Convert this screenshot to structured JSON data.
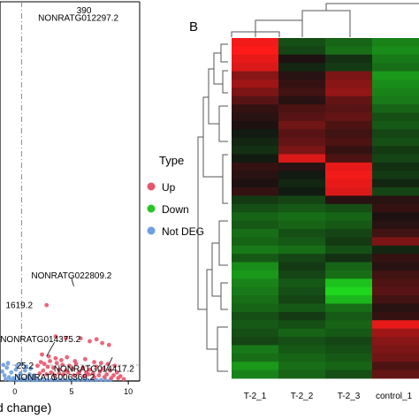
{
  "panel_b_label": "B",
  "legend": {
    "title": "Type",
    "items": [
      {
        "label": "Up",
        "color": "#e8556a"
      },
      {
        "label": "Down",
        "color": "#27c427"
      },
      {
        "label": "Not DEG",
        "color": "#6e9fe0"
      }
    ]
  },
  "chart_data": [
    {
      "type": "scatter",
      "panel": "A",
      "xlabel": "d change)",
      "ylabel": "",
      "xticks": [
        0,
        5,
        10
      ],
      "xlim": [
        -1.3,
        11
      ],
      "ylim": [
        0,
        400
      ],
      "grid": false,
      "reference_line_x": 0.6,
      "reference_line_style": "dash-dot",
      "annotations": [
        {
          "text": "NONRATG012297.2",
          "x": 5.6,
          "y": 380
        },
        {
          "text": "390",
          "x": 6.1,
          "y": 388,
          "color": "#e8556a"
        },
        {
          "text": "NONRATG022809.2",
          "x": 5.0,
          "y": 108
        },
        {
          "text": "1619.2",
          "x": 0.4,
          "y": 77
        },
        {
          "text": "NONRATG014375.2",
          "x": 2.0,
          "y": 41
        },
        {
          "text": "NONRATG014417.2",
          "x": 8.0,
          "y": 10
        },
        {
          "text": "NONRATG006369.2",
          "x": 3.5,
          "y": 1
        },
        {
          "text": "25.2",
          "x": 0.9,
          "y": 13
        }
      ],
      "series": [
        {
          "type": "Up",
          "color": "#e8556a",
          "points": [
            [
              2.8,
              80
            ],
            [
              3.6,
              47
            ],
            [
              4.5,
              45
            ],
            [
              5.8,
              45
            ],
            [
              6.6,
              42
            ],
            [
              7.2,
              44
            ],
            [
              7.7,
              40
            ],
            [
              8.3,
              38
            ],
            [
              2.0,
              16
            ],
            [
              2.3,
              20
            ],
            [
              2.6,
              18
            ],
            [
              2.9,
              15
            ],
            [
              3.1,
              21
            ],
            [
              3.4,
              14
            ],
            [
              3.7,
              19
            ],
            [
              3.9,
              12
            ],
            [
              4.2,
              17
            ],
            [
              4.5,
              11
            ],
            [
              4.8,
              16
            ],
            [
              5.1,
              13
            ],
            [
              5.4,
              18
            ],
            [
              5.7,
              10
            ],
            [
              6.0,
              14
            ],
            [
              6.3,
              9
            ],
            [
              6.6,
              12
            ],
            [
              6.9,
              8
            ],
            [
              7.2,
              15
            ],
            [
              7.5,
              10
            ],
            [
              7.8,
              13
            ],
            [
              8.1,
              7
            ],
            [
              8.4,
              11
            ],
            [
              8.7,
              6
            ],
            [
              9.0,
              9
            ],
            [
              9.3,
              5
            ],
            [
              2.2,
              8
            ],
            [
              2.5,
              11
            ],
            [
              2.8,
              7
            ],
            [
              3.2,
              9
            ],
            [
              3.5,
              6
            ],
            [
              3.9,
              8
            ],
            [
              4.3,
              7
            ],
            [
              4.7,
              9
            ],
            [
              5.2,
              6
            ],
            [
              5.6,
              8
            ],
            [
              6.1,
              5
            ],
            [
              6.5,
              7
            ],
            [
              7.0,
              4
            ],
            [
              7.4,
              6
            ],
            [
              7.9,
              4
            ],
            [
              8.5,
              3
            ],
            [
              9.1,
              3
            ],
            [
              9.6,
              2
            ],
            [
              2.4,
              28
            ],
            [
              3.0,
              26
            ],
            [
              3.6,
              24
            ],
            [
              4.1,
              22
            ],
            [
              4.6,
              25
            ],
            [
              5.3,
              21
            ],
            [
              6.2,
              23
            ],
            [
              7.0,
              20
            ],
            [
              7.6,
              19
            ],
            [
              8.2,
              18
            ],
            [
              8.8,
              16
            ]
          ]
        },
        {
          "type": "Not DEG",
          "color": "#6e9fe0",
          "points": [
            [
              -1.1,
              10
            ],
            [
              -0.9,
              6
            ],
            [
              -0.7,
              14
            ],
            [
              -0.5,
              4
            ],
            [
              -0.3,
              9
            ],
            [
              -0.1,
              3
            ],
            [
              0.1,
              12
            ],
            [
              0.3,
              5
            ],
            [
              0.5,
              8
            ],
            [
              0.7,
              2
            ],
            [
              0.9,
              11
            ],
            [
              1.1,
              4
            ],
            [
              1.3,
              7
            ],
            [
              1.5,
              3
            ],
            [
              1.7,
              6
            ],
            [
              1.9,
              2
            ],
            [
              -0.8,
              2
            ],
            [
              -0.4,
              1
            ],
            [
              0.0,
              1
            ],
            [
              0.4,
              1
            ],
            [
              0.8,
              1
            ],
            [
              1.2,
              1
            ],
            [
              1.6,
              1
            ],
            [
              2.0,
              1
            ],
            [
              2.4,
              1
            ],
            [
              2.8,
              1
            ],
            [
              3.2,
              1
            ],
            [
              3.6,
              1
            ],
            [
              4.0,
              1
            ],
            [
              4.4,
              1
            ],
            [
              4.8,
              1
            ],
            [
              5.2,
              1
            ],
            [
              5.6,
              1
            ],
            [
              6.0,
              1
            ],
            [
              6.4,
              1
            ],
            [
              6.8,
              1
            ],
            [
              7.2,
              1
            ],
            [
              7.6,
              1
            ],
            [
              8.0,
              1
            ],
            [
              8.4,
              1
            ],
            [
              -1.0,
              17
            ],
            [
              -0.6,
              19
            ],
            [
              0.2,
              16
            ],
            [
              0.6,
              18
            ],
            [
              1.0,
              15
            ],
            [
              1.4,
              13
            ]
          ]
        }
      ]
    },
    {
      "type": "heatmap",
      "panel": "B",
      "columns": [
        "T-2_1",
        "T-2_2",
        "T-2_3",
        "control_1"
      ],
      "color_low": "#1fe01f",
      "color_mid": "#111111",
      "color_high": "#ff1a1a",
      "value_range": [
        -2,
        2
      ],
      "rows": [
        [
          1.9,
          -0.6,
          -0.8,
          -1.1
        ],
        [
          2.0,
          -0.5,
          -0.9,
          -1.2
        ],
        [
          1.8,
          0.1,
          -0.3,
          -1.0
        ],
        [
          1.7,
          -0.2,
          -0.4,
          -0.9
        ],
        [
          1.0,
          0.2,
          0.9,
          -1.3
        ],
        [
          1.2,
          0.3,
          1.0,
          -1.2
        ],
        [
          0.9,
          0.4,
          1.1,
          -1.1
        ],
        [
          0.6,
          0.2,
          0.7,
          -1.0
        ],
        [
          0.3,
          0.5,
          0.6,
          -0.8
        ],
        [
          0.2,
          0.6,
          0.7,
          -0.6
        ],
        [
          0.1,
          0.8,
          0.5,
          -0.7
        ],
        [
          -0.1,
          0.6,
          0.4,
          -0.5
        ],
        [
          -0.2,
          0.7,
          0.5,
          -0.6
        ],
        [
          -0.3,
          0.9,
          0.3,
          -0.4
        ],
        [
          -0.1,
          1.7,
          0.5,
          -0.5
        ],
        [
          0.3,
          0.2,
          1.8,
          -0.3
        ],
        [
          0.2,
          -0.1,
          1.9,
          -0.4
        ],
        [
          0.1,
          -0.2,
          1.8,
          -0.2
        ],
        [
          0.3,
          -0.1,
          1.7,
          -0.5
        ],
        [
          -0.4,
          -0.5,
          0.2,
          0.2
        ],
        [
          -0.6,
          -0.7,
          -0.6,
          0.3
        ],
        [
          -0.8,
          -0.9,
          -0.8,
          0.1
        ],
        [
          -0.7,
          -0.8,
          -0.7,
          0.2
        ],
        [
          -0.9,
          -0.6,
          -0.5,
          0.4
        ],
        [
          -0.8,
          -0.7,
          -0.4,
          0.9
        ],
        [
          -1.0,
          -0.9,
          -0.6,
          -0.2
        ],
        [
          -0.7,
          -0.5,
          -0.3,
          0.3
        ],
        [
          -1.2,
          -0.4,
          -0.8,
          0.2
        ],
        [
          -1.3,
          -0.5,
          -0.9,
          0.4
        ],
        [
          -1.1,
          -0.7,
          -1.7,
          0.5
        ],
        [
          -1.0,
          -0.6,
          -1.9,
          0.6
        ],
        [
          -0.9,
          -0.5,
          -1.6,
          0.4
        ],
        [
          -0.8,
          -0.7,
          -0.9,
          0.2
        ],
        [
          -0.6,
          -0.4,
          -0.7,
          0.3
        ],
        [
          -0.7,
          -0.6,
          -0.8,
          1.8
        ],
        [
          -0.6,
          -0.8,
          -0.7,
          1.2
        ],
        [
          -0.5,
          -0.6,
          -0.5,
          1.0
        ],
        [
          -1.0,
          -0.7,
          -0.6,
          0.9
        ],
        [
          -0.9,
          -0.8,
          -0.7,
          0.8
        ],
        [
          -1.3,
          -0.9,
          -0.8,
          0.5
        ],
        [
          -1.1,
          -0.8,
          -0.6,
          0.7
        ]
      ]
    }
  ]
}
